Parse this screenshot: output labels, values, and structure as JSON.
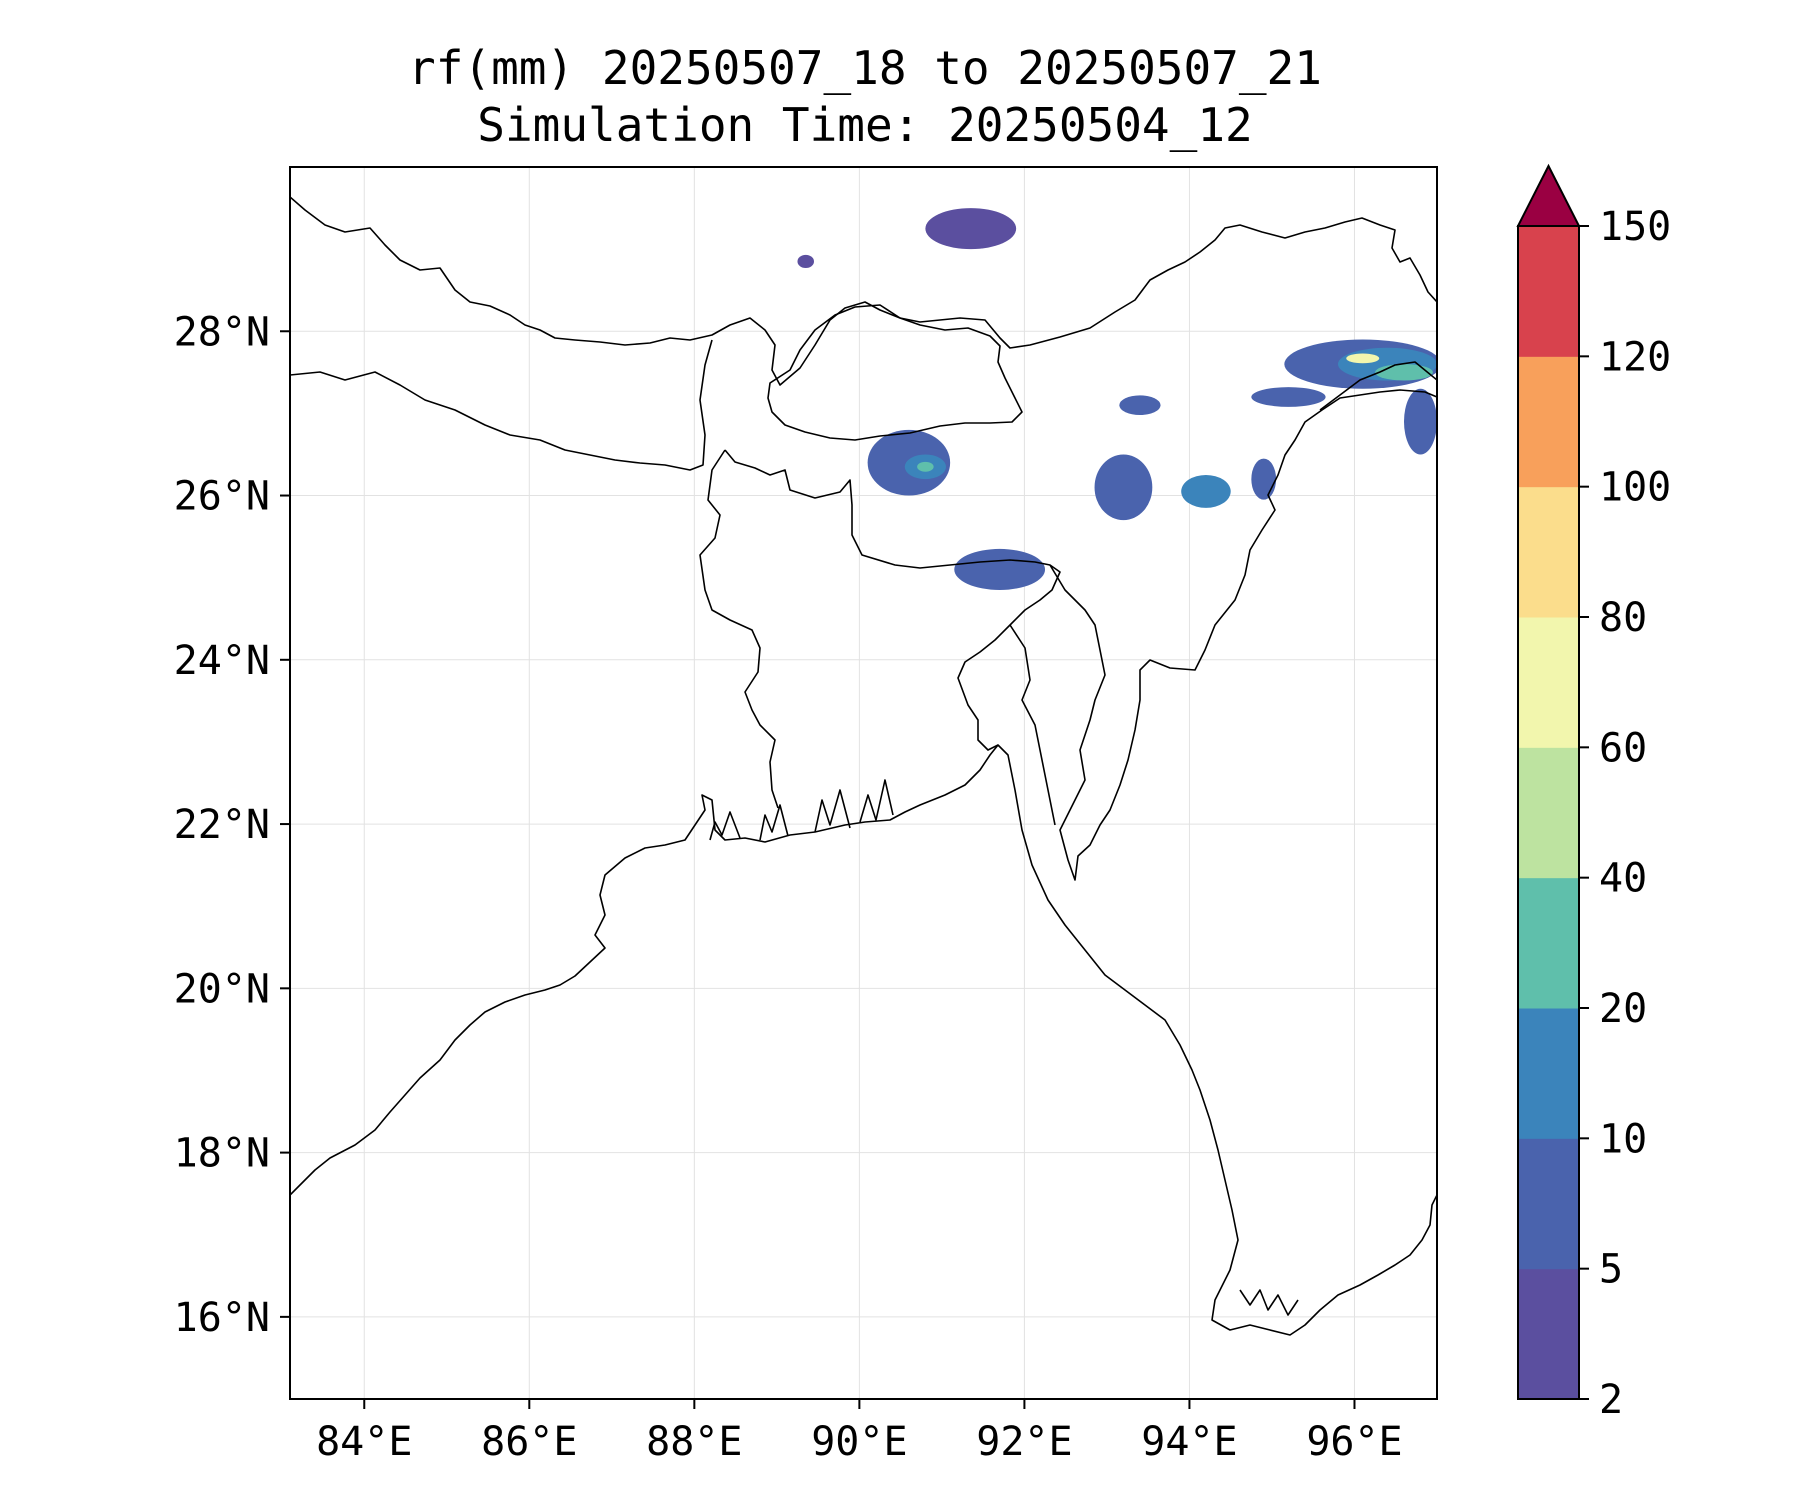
{
  "title": {
    "line1": "rf(mm) 20250507_18 to 20250507_21",
    "line2": "Simulation Time: 20250504_12"
  },
  "map": {
    "lon_range": [
      83.1,
      97.0
    ],
    "lat_range": [
      15.0,
      30.0
    ],
    "lon_ticks": [
      84,
      86,
      88,
      90,
      92,
      94,
      96
    ],
    "lat_ticks": [
      16,
      18,
      20,
      22,
      24,
      26,
      28
    ],
    "lon_tick_labels": [
      "84°E",
      "86°E",
      "88°E",
      "90°E",
      "92°E",
      "94°E",
      "96°E"
    ],
    "lat_tick_labels": [
      "16°N",
      "18°N",
      "20°N",
      "22°N",
      "24°N",
      "26°N",
      "28°N"
    ],
    "gridlines": true
  },
  "colorbar": {
    "levels": [
      "2",
      "5",
      "10",
      "20",
      "40",
      "60",
      "80",
      "100",
      "120",
      "150"
    ],
    "colors": [
      "#5b4f9f",
      "#4a63ad",
      "#3b84bb",
      "#5fbfab",
      "#bde3a0",
      "#f2f6ad",
      "#fbdd8c",
      "#f8a05b",
      "#d8424d"
    ],
    "extend_color": "#9a0042",
    "extend": "max"
  },
  "rain_cells": [
    {
      "lon": 91.35,
      "lat": 29.25,
      "rx": 0.55,
      "ry": 0.25,
      "level": 0
    },
    {
      "lon": 89.35,
      "lat": 28.85,
      "rx": 0.1,
      "ry": 0.08,
      "level": 0
    },
    {
      "lon": 90.6,
      "lat": 26.4,
      "rx": 0.5,
      "ry": 0.4,
      "level": 1
    },
    {
      "lon": 90.8,
      "lat": 26.35,
      "rx": 0.25,
      "ry": 0.15,
      "level": 2
    },
    {
      "lon": 90.8,
      "lat": 26.35,
      "rx": 0.1,
      "ry": 0.06,
      "level": 3
    },
    {
      "lon": 91.7,
      "lat": 25.1,
      "rx": 0.55,
      "ry": 0.25,
      "level": 1
    },
    {
      "lon": 93.4,
      "lat": 27.1,
      "rx": 0.25,
      "ry": 0.12,
      "level": 1
    },
    {
      "lon": 93.2,
      "lat": 26.1,
      "rx": 0.35,
      "ry": 0.4,
      "level": 1
    },
    {
      "lon": 94.2,
      "lat": 26.05,
      "rx": 0.3,
      "ry": 0.2,
      "level": 2
    },
    {
      "lon": 94.9,
      "lat": 26.2,
      "rx": 0.15,
      "ry": 0.25,
      "level": 1
    },
    {
      "lon": 95.2,
      "lat": 27.2,
      "rx": 0.45,
      "ry": 0.12,
      "level": 1
    },
    {
      "lon": 96.1,
      "lat": 27.6,
      "rx": 0.95,
      "ry": 0.3,
      "level": 1
    },
    {
      "lon": 96.4,
      "lat": 27.6,
      "rx": 0.6,
      "ry": 0.2,
      "level": 2
    },
    {
      "lon": 96.6,
      "lat": 27.5,
      "rx": 0.35,
      "ry": 0.1,
      "level": 3
    },
    {
      "lon": 96.1,
      "lat": 27.67,
      "rx": 0.2,
      "ry": 0.06,
      "level": 5
    },
    {
      "lon": 96.8,
      "lat": 26.9,
      "rx": 0.2,
      "ry": 0.4,
      "level": 1
    }
  ]
}
